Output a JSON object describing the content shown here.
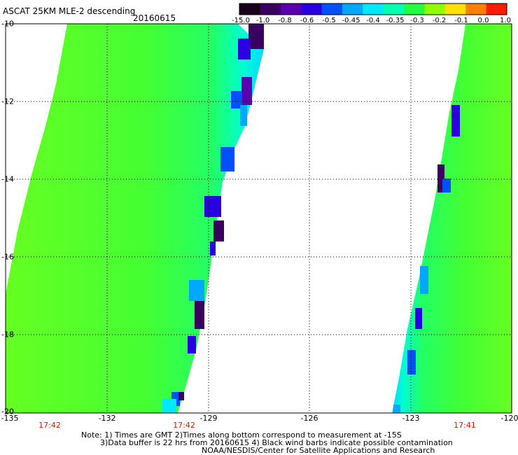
{
  "title": "ASCAT 25KM MLE-2 descending",
  "date": "20160615",
  "colorbar": {
    "labels": [
      "-15.0",
      "-1.0",
      "-0.8",
      "-0.6",
      "-0.5",
      "-0.45",
      "-0.4",
      "-0.35",
      "-0.3",
      "-0.2",
      "-0.1",
      "0.0",
      "1.0"
    ],
    "colors": [
      "#1a001a",
      "#3a0060",
      "#5a00b0",
      "#2a00e0",
      "#0050ff",
      "#00a8ff",
      "#00e8ff",
      "#00ffb0",
      "#20ff40",
      "#90ff00",
      "#ffe000",
      "#ff8000",
      "#ff1a00"
    ]
  },
  "axes": {
    "y_labels": [
      "-10",
      "-12",
      "-14",
      "-16",
      "-18",
      "-20"
    ],
    "x_labels": [
      "-135",
      "-132",
      "-129",
      "-126",
      "-123",
      "-120"
    ],
    "pass_times": [
      "17:42",
      "17:42",
      "17:41"
    ]
  },
  "legend_colors": {
    "background": "#ffffff",
    "grid": "#000000",
    "time_label": "#d21f00"
  },
  "notes": {
    "line1": "Note: 1) Times are GMT 2)Times along bottom correspond to measurement at -15S",
    "line2": "3)Data buffer is 22 hrs from 20160615 4) Black wind barbs indicate possible contamination",
    "line3": "NOAA/NESDIS/Center for Satellite Applications and Research"
  }
}
